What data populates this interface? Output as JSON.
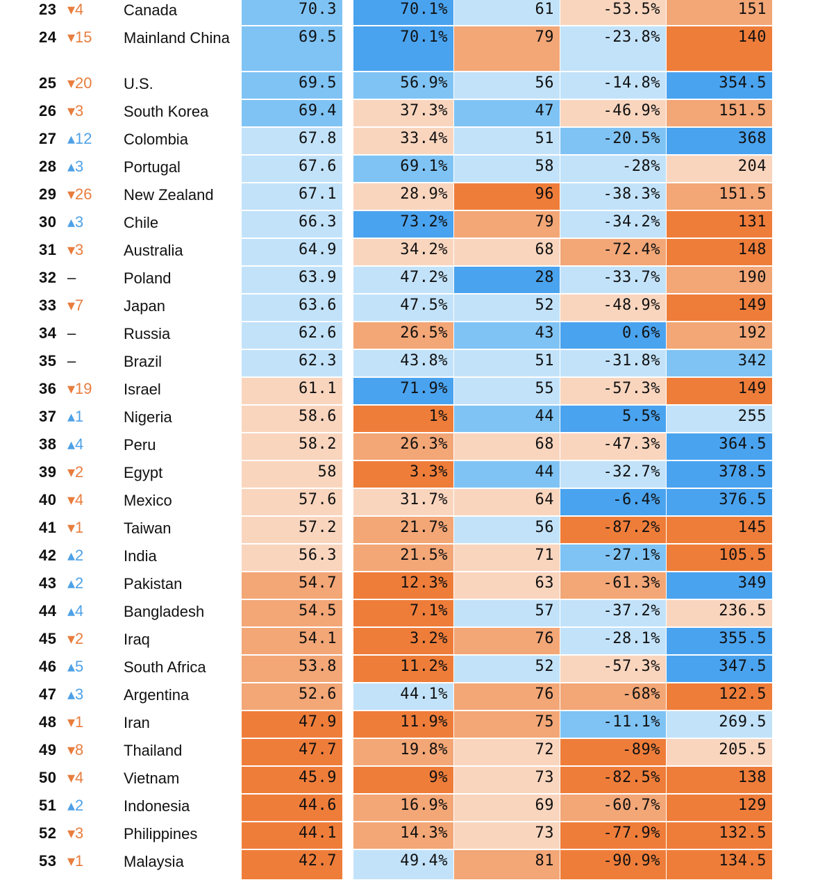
{
  "colors": {
    "orange_dark": "#ef7d3a",
    "orange_mid": "#f3a676",
    "orange_light": "#f9d5be",
    "blue_light": "#c2e2f9",
    "blue_mid": "#7fc3f5",
    "blue_dark": "#4aa3ef"
  },
  "chart_data": {
    "type": "table",
    "rows": [
      {
        "rank": "23",
        "change": "▾4",
        "dir": "down",
        "country": "Canada",
        "values": [
          "70.3",
          "70.1%",
          "61",
          "-53.5%",
          "151"
        ],
        "shades": [
          "blue_mid",
          "blue_dark",
          "blue_light",
          "orange_light",
          "orange_mid"
        ]
      },
      {
        "rank": "24",
        "change": "▾15",
        "dir": "down",
        "country": "Mainland China",
        "values": [
          "69.5",
          "70.1%",
          "79",
          "-23.8%",
          "140"
        ],
        "shades": [
          "blue_mid",
          "blue_dark",
          "orange_mid",
          "blue_light",
          "orange_dark"
        ]
      },
      {
        "rank": "25",
        "change": "▾20",
        "dir": "down",
        "country": "U.S.",
        "values": [
          "69.5",
          "56.9%",
          "56",
          "-14.8%",
          "354.5"
        ],
        "shades": [
          "blue_mid",
          "blue_mid",
          "blue_light",
          "blue_light",
          "blue_dark"
        ]
      },
      {
        "rank": "26",
        "change": "▾3",
        "dir": "down",
        "country": "South Korea",
        "values": [
          "69.4",
          "37.3%",
          "47",
          "-46.9%",
          "151.5"
        ],
        "shades": [
          "blue_mid",
          "orange_light",
          "blue_mid",
          "orange_light",
          "orange_mid"
        ]
      },
      {
        "rank": "27",
        "change": "▴12",
        "dir": "up",
        "country": "Colombia",
        "values": [
          "67.8",
          "33.4%",
          "51",
          "-20.5%",
          "368"
        ],
        "shades": [
          "blue_light",
          "orange_light",
          "blue_light",
          "blue_mid",
          "blue_dark"
        ]
      },
      {
        "rank": "28",
        "change": "▴3",
        "dir": "up",
        "country": "Portugal",
        "values": [
          "67.6",
          "69.1%",
          "58",
          "-28%",
          "204"
        ],
        "shades": [
          "blue_light",
          "blue_mid",
          "blue_light",
          "blue_light",
          "orange_light"
        ]
      },
      {
        "rank": "29",
        "change": "▾26",
        "dir": "down",
        "country": "New Zealand",
        "values": [
          "67.1",
          "28.9%",
          "96",
          "-38.3%",
          "151.5"
        ],
        "shades": [
          "blue_light",
          "orange_light",
          "orange_dark",
          "blue_light",
          "orange_mid"
        ]
      },
      {
        "rank": "30",
        "change": "▴3",
        "dir": "up",
        "country": "Chile",
        "values": [
          "66.3",
          "73.2%",
          "79",
          "-34.2%",
          "131"
        ],
        "shades": [
          "blue_light",
          "blue_dark",
          "orange_mid",
          "blue_light",
          "orange_dark"
        ]
      },
      {
        "rank": "31",
        "change": "▾3",
        "dir": "down",
        "country": "Australia",
        "values": [
          "64.9",
          "34.2%",
          "68",
          "-72.4%",
          "148"
        ],
        "shades": [
          "blue_light",
          "orange_light",
          "orange_light",
          "orange_mid",
          "orange_dark"
        ]
      },
      {
        "rank": "32",
        "change": "–",
        "dir": "same",
        "country": "Poland",
        "values": [
          "63.9",
          "47.2%",
          "28",
          "-33.7%",
          "190"
        ],
        "shades": [
          "blue_light",
          "blue_light",
          "blue_dark",
          "blue_light",
          "orange_mid"
        ]
      },
      {
        "rank": "33",
        "change": "▾7",
        "dir": "down",
        "country": "Japan",
        "values": [
          "63.6",
          "47.5%",
          "52",
          "-48.9%",
          "149"
        ],
        "shades": [
          "blue_light",
          "blue_light",
          "blue_light",
          "orange_light",
          "orange_dark"
        ]
      },
      {
        "rank": "34",
        "change": "–",
        "dir": "same",
        "country": "Russia",
        "values": [
          "62.6",
          "26.5%",
          "43",
          "0.6%",
          "192"
        ],
        "shades": [
          "blue_light",
          "orange_mid",
          "blue_mid",
          "blue_dark",
          "orange_mid"
        ]
      },
      {
        "rank": "35",
        "change": "–",
        "dir": "same",
        "country": "Brazil",
        "values": [
          "62.3",
          "43.8%",
          "51",
          "-31.8%",
          "342"
        ],
        "shades": [
          "blue_light",
          "blue_light",
          "blue_light",
          "blue_light",
          "blue_mid"
        ]
      },
      {
        "rank": "36",
        "change": "▾19",
        "dir": "down",
        "country": "Israel",
        "values": [
          "61.1",
          "71.9%",
          "55",
          "-57.3%",
          "149"
        ],
        "shades": [
          "orange_light",
          "blue_dark",
          "blue_light",
          "orange_light",
          "orange_dark"
        ]
      },
      {
        "rank": "37",
        "change": "▴1",
        "dir": "up",
        "country": "Nigeria",
        "values": [
          "58.6",
          "1%",
          "44",
          "5.5%",
          "255"
        ],
        "shades": [
          "orange_light",
          "orange_dark",
          "blue_mid",
          "blue_dark",
          "blue_light"
        ]
      },
      {
        "rank": "38",
        "change": "▴4",
        "dir": "up",
        "country": "Peru",
        "values": [
          "58.2",
          "26.3%",
          "68",
          "-47.3%",
          "364.5"
        ],
        "shades": [
          "orange_light",
          "orange_mid",
          "orange_light",
          "orange_light",
          "blue_dark"
        ]
      },
      {
        "rank": "39",
        "change": "▾2",
        "dir": "down",
        "country": "Egypt",
        "values": [
          "58",
          "3.3%",
          "44",
          "-32.7%",
          "378.5"
        ],
        "shades": [
          "orange_light",
          "orange_dark",
          "blue_mid",
          "blue_light",
          "blue_dark"
        ]
      },
      {
        "rank": "40",
        "change": "▾4",
        "dir": "down",
        "country": "Mexico",
        "values": [
          "57.6",
          "31.7%",
          "64",
          "-6.4%",
          "376.5"
        ],
        "shades": [
          "orange_light",
          "orange_light",
          "orange_light",
          "blue_dark",
          "blue_dark"
        ]
      },
      {
        "rank": "41",
        "change": "▾1",
        "dir": "down",
        "country": "Taiwan",
        "values": [
          "57.2",
          "21.7%",
          "56",
          "-87.2%",
          "145"
        ],
        "shades": [
          "orange_light",
          "orange_mid",
          "blue_light",
          "orange_dark",
          "orange_dark"
        ]
      },
      {
        "rank": "42",
        "change": "▴2",
        "dir": "up",
        "country": "India",
        "values": [
          "56.3",
          "21.5%",
          "71",
          "-27.1%",
          "105.5"
        ],
        "shades": [
          "orange_light",
          "orange_mid",
          "orange_light",
          "blue_mid",
          "orange_dark"
        ]
      },
      {
        "rank": "43",
        "change": "▴2",
        "dir": "up",
        "country": "Pakistan",
        "values": [
          "54.7",
          "12.3%",
          "63",
          "-61.3%",
          "349"
        ],
        "shades": [
          "orange_mid",
          "orange_dark",
          "orange_light",
          "orange_mid",
          "blue_dark"
        ]
      },
      {
        "rank": "44",
        "change": "▴4",
        "dir": "up",
        "country": "Bangladesh",
        "values": [
          "54.5",
          "7.1%",
          "57",
          "-37.2%",
          "236.5"
        ],
        "shades": [
          "orange_mid",
          "orange_dark",
          "blue_light",
          "blue_light",
          "orange_light"
        ]
      },
      {
        "rank": "45",
        "change": "▾2",
        "dir": "down",
        "country": "Iraq",
        "values": [
          "54.1",
          "3.2%",
          "76",
          "-28.1%",
          "355.5"
        ],
        "shades": [
          "orange_mid",
          "orange_dark",
          "orange_mid",
          "blue_light",
          "blue_dark"
        ]
      },
      {
        "rank": "46",
        "change": "▴5",
        "dir": "up",
        "country": "South Africa",
        "values": [
          "53.8",
          "11.2%",
          "52",
          "-57.3%",
          "347.5"
        ],
        "shades": [
          "orange_mid",
          "orange_dark",
          "blue_light",
          "orange_light",
          "blue_dark"
        ]
      },
      {
        "rank": "47",
        "change": "▴3",
        "dir": "up",
        "country": "Argentina",
        "values": [
          "52.6",
          "44.1%",
          "76",
          "-68%",
          "122.5"
        ],
        "shades": [
          "orange_mid",
          "blue_light",
          "orange_mid",
          "orange_mid",
          "orange_dark"
        ]
      },
      {
        "rank": "48",
        "change": "▾1",
        "dir": "down",
        "country": "Iran",
        "values": [
          "47.9",
          "11.9%",
          "75",
          "-11.1%",
          "269.5"
        ],
        "shades": [
          "orange_dark",
          "orange_dark",
          "orange_mid",
          "blue_mid",
          "blue_light"
        ]
      },
      {
        "rank": "49",
        "change": "▾8",
        "dir": "down",
        "country": "Thailand",
        "values": [
          "47.7",
          "19.8%",
          "72",
          "-89%",
          "205.5"
        ],
        "shades": [
          "orange_dark",
          "orange_mid",
          "orange_light",
          "orange_dark",
          "orange_light"
        ]
      },
      {
        "rank": "50",
        "change": "▾4",
        "dir": "down",
        "country": "Vietnam",
        "values": [
          "45.9",
          "9%",
          "73",
          "-82.5%",
          "138"
        ],
        "shades": [
          "orange_dark",
          "orange_dark",
          "orange_light",
          "orange_dark",
          "orange_dark"
        ]
      },
      {
        "rank": "51",
        "change": "▴2",
        "dir": "up",
        "country": "Indonesia",
        "values": [
          "44.6",
          "16.9%",
          "69",
          "-60.7%",
          "129"
        ],
        "shades": [
          "orange_dark",
          "orange_mid",
          "orange_light",
          "orange_mid",
          "orange_dark"
        ]
      },
      {
        "rank": "52",
        "change": "▾3",
        "dir": "down",
        "country": "Philippines",
        "values": [
          "44.1",
          "14.3%",
          "73",
          "-77.9%",
          "132.5"
        ],
        "shades": [
          "orange_dark",
          "orange_mid",
          "orange_light",
          "orange_dark",
          "orange_dark"
        ]
      },
      {
        "rank": "53",
        "change": "▾1",
        "dir": "down",
        "country": "Malaysia",
        "values": [
          "42.7",
          "49.4%",
          "81",
          "-90.9%",
          "134.5"
        ],
        "shades": [
          "orange_dark",
          "blue_light",
          "orange_mid",
          "orange_dark",
          "orange_dark"
        ]
      }
    ]
  }
}
